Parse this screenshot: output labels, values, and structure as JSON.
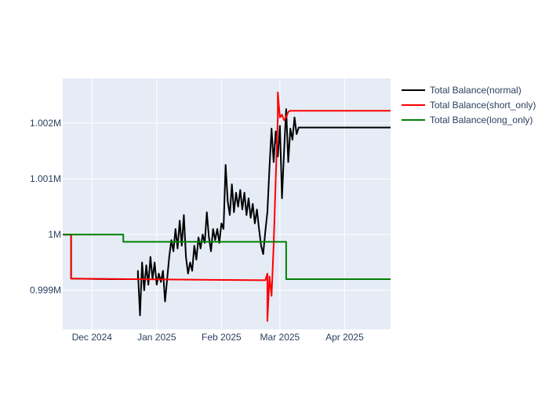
{
  "chart_data": {
    "type": "line",
    "title": "",
    "xlabel": "",
    "ylabel": "",
    "x_tick_labels": [
      "Dec 2024",
      "Jan 2025",
      "Feb 2025",
      "Mar 2025",
      "Apr 2025"
    ],
    "x_tick_dates": [
      "2024-12-01",
      "2025-01-01",
      "2025-02-01",
      "2025-03-01",
      "2025-04-01"
    ],
    "x_range": [
      "2024-11-17",
      "2025-04-23"
    ],
    "y_tick_labels": [
      "0.999M",
      "1M",
      "1.001M",
      "1.002M"
    ],
    "y_tick_values": [
      999000,
      1000000,
      1001000,
      1002000
    ],
    "ylim": [
      998300,
      1002800
    ],
    "grid": true,
    "legend_position": "top-right outside",
    "series": [
      {
        "name": "Total Balance(normal)",
        "color": "#000000",
        "points": [
          [
            "2024-11-17",
            1000000
          ],
          [
            "2024-11-21",
            1000000
          ],
          [
            "2024-11-21",
            999210
          ],
          [
            "2024-12-10",
            999200
          ],
          [
            "2024-12-23",
            999200
          ],
          [
            "2024-12-23",
            999350
          ],
          [
            "2024-12-24",
            998550
          ],
          [
            "2024-12-25",
            999500
          ],
          [
            "2024-12-26",
            999000
          ],
          [
            "2024-12-27",
            999450
          ],
          [
            "2024-12-28",
            999100
          ],
          [
            "2024-12-29",
            999600
          ],
          [
            "2024-12-30",
            999200
          ],
          [
            "2024-12-31",
            999500
          ],
          [
            "2025-01-01",
            999100
          ],
          [
            "2025-01-02",
            999300
          ],
          [
            "2025-01-03",
            999150
          ],
          [
            "2025-01-04",
            999350
          ],
          [
            "2025-01-05",
            998800
          ],
          [
            "2025-01-06",
            999200
          ],
          [
            "2025-01-07",
            999600
          ],
          [
            "2025-01-08",
            999900
          ],
          [
            "2025-01-09",
            999700
          ],
          [
            "2025-01-10",
            1000100
          ],
          [
            "2025-01-11",
            999750
          ],
          [
            "2025-01-12",
            1000250
          ],
          [
            "2025-01-13",
            999800
          ],
          [
            "2025-01-14",
            1000350
          ],
          [
            "2025-01-15",
            999600
          ],
          [
            "2025-01-16",
            999300
          ],
          [
            "2025-01-17",
            999500
          ],
          [
            "2025-01-18",
            999350
          ],
          [
            "2025-01-19",
            999800
          ],
          [
            "2025-01-20",
            999550
          ],
          [
            "2025-01-21",
            999950
          ],
          [
            "2025-01-22",
            999750
          ],
          [
            "2025-01-23",
            1000000
          ],
          [
            "2025-01-24",
            999850
          ],
          [
            "2025-01-25",
            1000400
          ],
          [
            "2025-01-26",
            999950
          ],
          [
            "2025-01-27",
            999700
          ],
          [
            "2025-01-28",
            1000100
          ],
          [
            "2025-01-29",
            999900
          ],
          [
            "2025-01-30",
            1000100
          ],
          [
            "2025-01-31",
            999850
          ],
          [
            "2025-02-01",
            1000200
          ],
          [
            "2025-02-02",
            1000100
          ],
          [
            "2025-02-03",
            1001250
          ],
          [
            "2025-02-04",
            1000600
          ],
          [
            "2025-02-05",
            1000350
          ],
          [
            "2025-02-06",
            1000900
          ],
          [
            "2025-02-07",
            1000400
          ],
          [
            "2025-02-08",
            1000750
          ],
          [
            "2025-02-09",
            1000500
          ],
          [
            "2025-02-10",
            1000800
          ],
          [
            "2025-02-11",
            1000450
          ],
          [
            "2025-02-12",
            1000750
          ],
          [
            "2025-02-13",
            1000350
          ],
          [
            "2025-02-14",
            1000650
          ],
          [
            "2025-02-15",
            1000300
          ],
          [
            "2025-02-16",
            1000550
          ],
          [
            "2025-02-17",
            1000200
          ],
          [
            "2025-02-18",
            1000450
          ],
          [
            "2025-02-19",
            1000100
          ],
          [
            "2025-02-20",
            999800
          ],
          [
            "2025-02-21",
            999650
          ],
          [
            "2025-02-22",
            1000050
          ],
          [
            "2025-02-23",
            1000400
          ],
          [
            "2025-02-24",
            1001200
          ],
          [
            "2025-02-25",
            1001900
          ],
          [
            "2025-02-26",
            1001300
          ],
          [
            "2025-02-27",
            1001850
          ],
          [
            "2025-02-28",
            1001400
          ],
          [
            "2025-03-01",
            1001950
          ],
          [
            "2025-03-02",
            1000650
          ],
          [
            "2025-03-03",
            1001500
          ],
          [
            "2025-03-04",
            1002250
          ],
          [
            "2025-03-05",
            1001300
          ],
          [
            "2025-03-06",
            1001900
          ],
          [
            "2025-03-07",
            1001700
          ],
          [
            "2025-03-08",
            1002100
          ],
          [
            "2025-03-09",
            1001800
          ],
          [
            "2025-03-10",
            1001920
          ],
          [
            "2025-04-23",
            1001920
          ]
        ]
      },
      {
        "name": "Total Balance(short_only)",
        "color": "#ff0000",
        "points": [
          [
            "2024-11-17",
            1000000
          ],
          [
            "2024-11-21",
            1000000
          ],
          [
            "2024-11-21",
            999210
          ],
          [
            "2025-02-22",
            999180
          ],
          [
            "2025-02-23",
            999300
          ],
          [
            "2025-02-23",
            998450
          ],
          [
            "2025-02-24",
            999250
          ],
          [
            "2025-02-25",
            998900
          ],
          [
            "2025-02-26",
            999800
          ],
          [
            "2025-02-27",
            1001000
          ],
          [
            "2025-02-28",
            1002100
          ],
          [
            "2025-02-28",
            1002550
          ],
          [
            "2025-03-01",
            1002100
          ],
          [
            "2025-03-02",
            1002150
          ],
          [
            "2025-03-03",
            1002050
          ],
          [
            "2025-03-04",
            1002100
          ],
          [
            "2025-03-05",
            1002200
          ],
          [
            "2025-03-06",
            1002220
          ],
          [
            "2025-04-23",
            1002220
          ]
        ]
      },
      {
        "name": "Total Balance(long_only)",
        "color": "#008000",
        "points": [
          [
            "2024-11-17",
            1000000
          ],
          [
            "2024-12-16",
            1000000
          ],
          [
            "2024-12-16",
            999870
          ],
          [
            "2025-03-04",
            999870
          ],
          [
            "2025-03-04",
            999200
          ],
          [
            "2025-04-23",
            999200
          ]
        ]
      }
    ]
  }
}
